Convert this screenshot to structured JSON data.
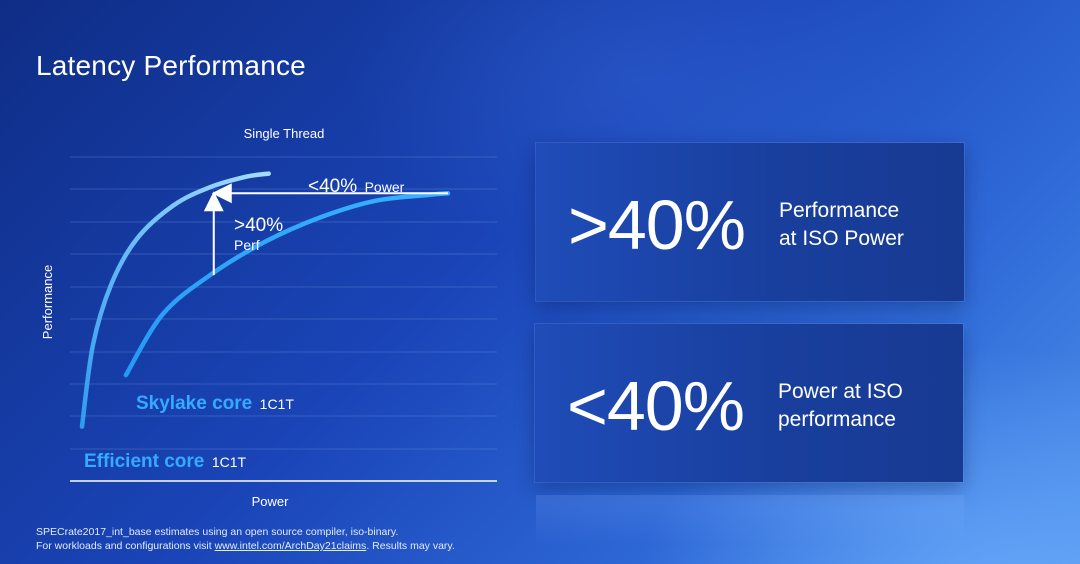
{
  "title": "Latency Performance",
  "stats": [
    {
      "value": ">40%",
      "line1": "Performance",
      "line2": "at ISO Power"
    },
    {
      "value": "<40%",
      "line1": "Power at ISO",
      "line2": "performance"
    }
  ],
  "footnote": {
    "line1": "SPECrate2017_int_base estimates using an open source compiler, iso-binary.",
    "line2_pre": "For workloads and configurations visit ",
    "line2_link": "www.intel.com/ArchDay21claims",
    "line2_post": ". Results may vary."
  },
  "colors": {
    "efficient": "#8ad0ff",
    "skylake": "#2fa4ff",
    "grid": "#6f95e0",
    "axis": "#ffffff"
  },
  "chart_data": {
    "type": "line",
    "title": "Single Thread",
    "xlabel": "Power",
    "ylabel": "Performance",
    "grid": true,
    "legend": "none",
    "series": [
      {
        "name": "Efficient core",
        "suffix": "1C1T",
        "x": [
          0.0,
          0.03,
          0.08,
          0.15,
          0.25,
          0.35,
          0.45,
          0.51
        ],
        "y": [
          0.13,
          0.4,
          0.6,
          0.75,
          0.86,
          0.92,
          0.955,
          0.965
        ]
      },
      {
        "name": "Skylake core",
        "suffix": "1C1T",
        "x": [
          0.12,
          0.22,
          0.35,
          0.5,
          0.65,
          0.8,
          0.95,
          1.0
        ],
        "y": [
          0.3,
          0.5,
          0.63,
          0.74,
          0.82,
          0.875,
          0.895,
          0.9
        ]
      }
    ],
    "annotations": [
      {
        "text": "<40%",
        "subtext": "Power",
        "type": "horizontal-arrow",
        "from": [
          1.0,
          0.9
        ],
        "to": [
          0.36,
          0.9
        ]
      },
      {
        "text": ">40%",
        "subtext": "Perf",
        "type": "vertical-arrow",
        "from": [
          0.36,
          0.63
        ],
        "to": [
          0.36,
          0.9
        ]
      }
    ]
  }
}
